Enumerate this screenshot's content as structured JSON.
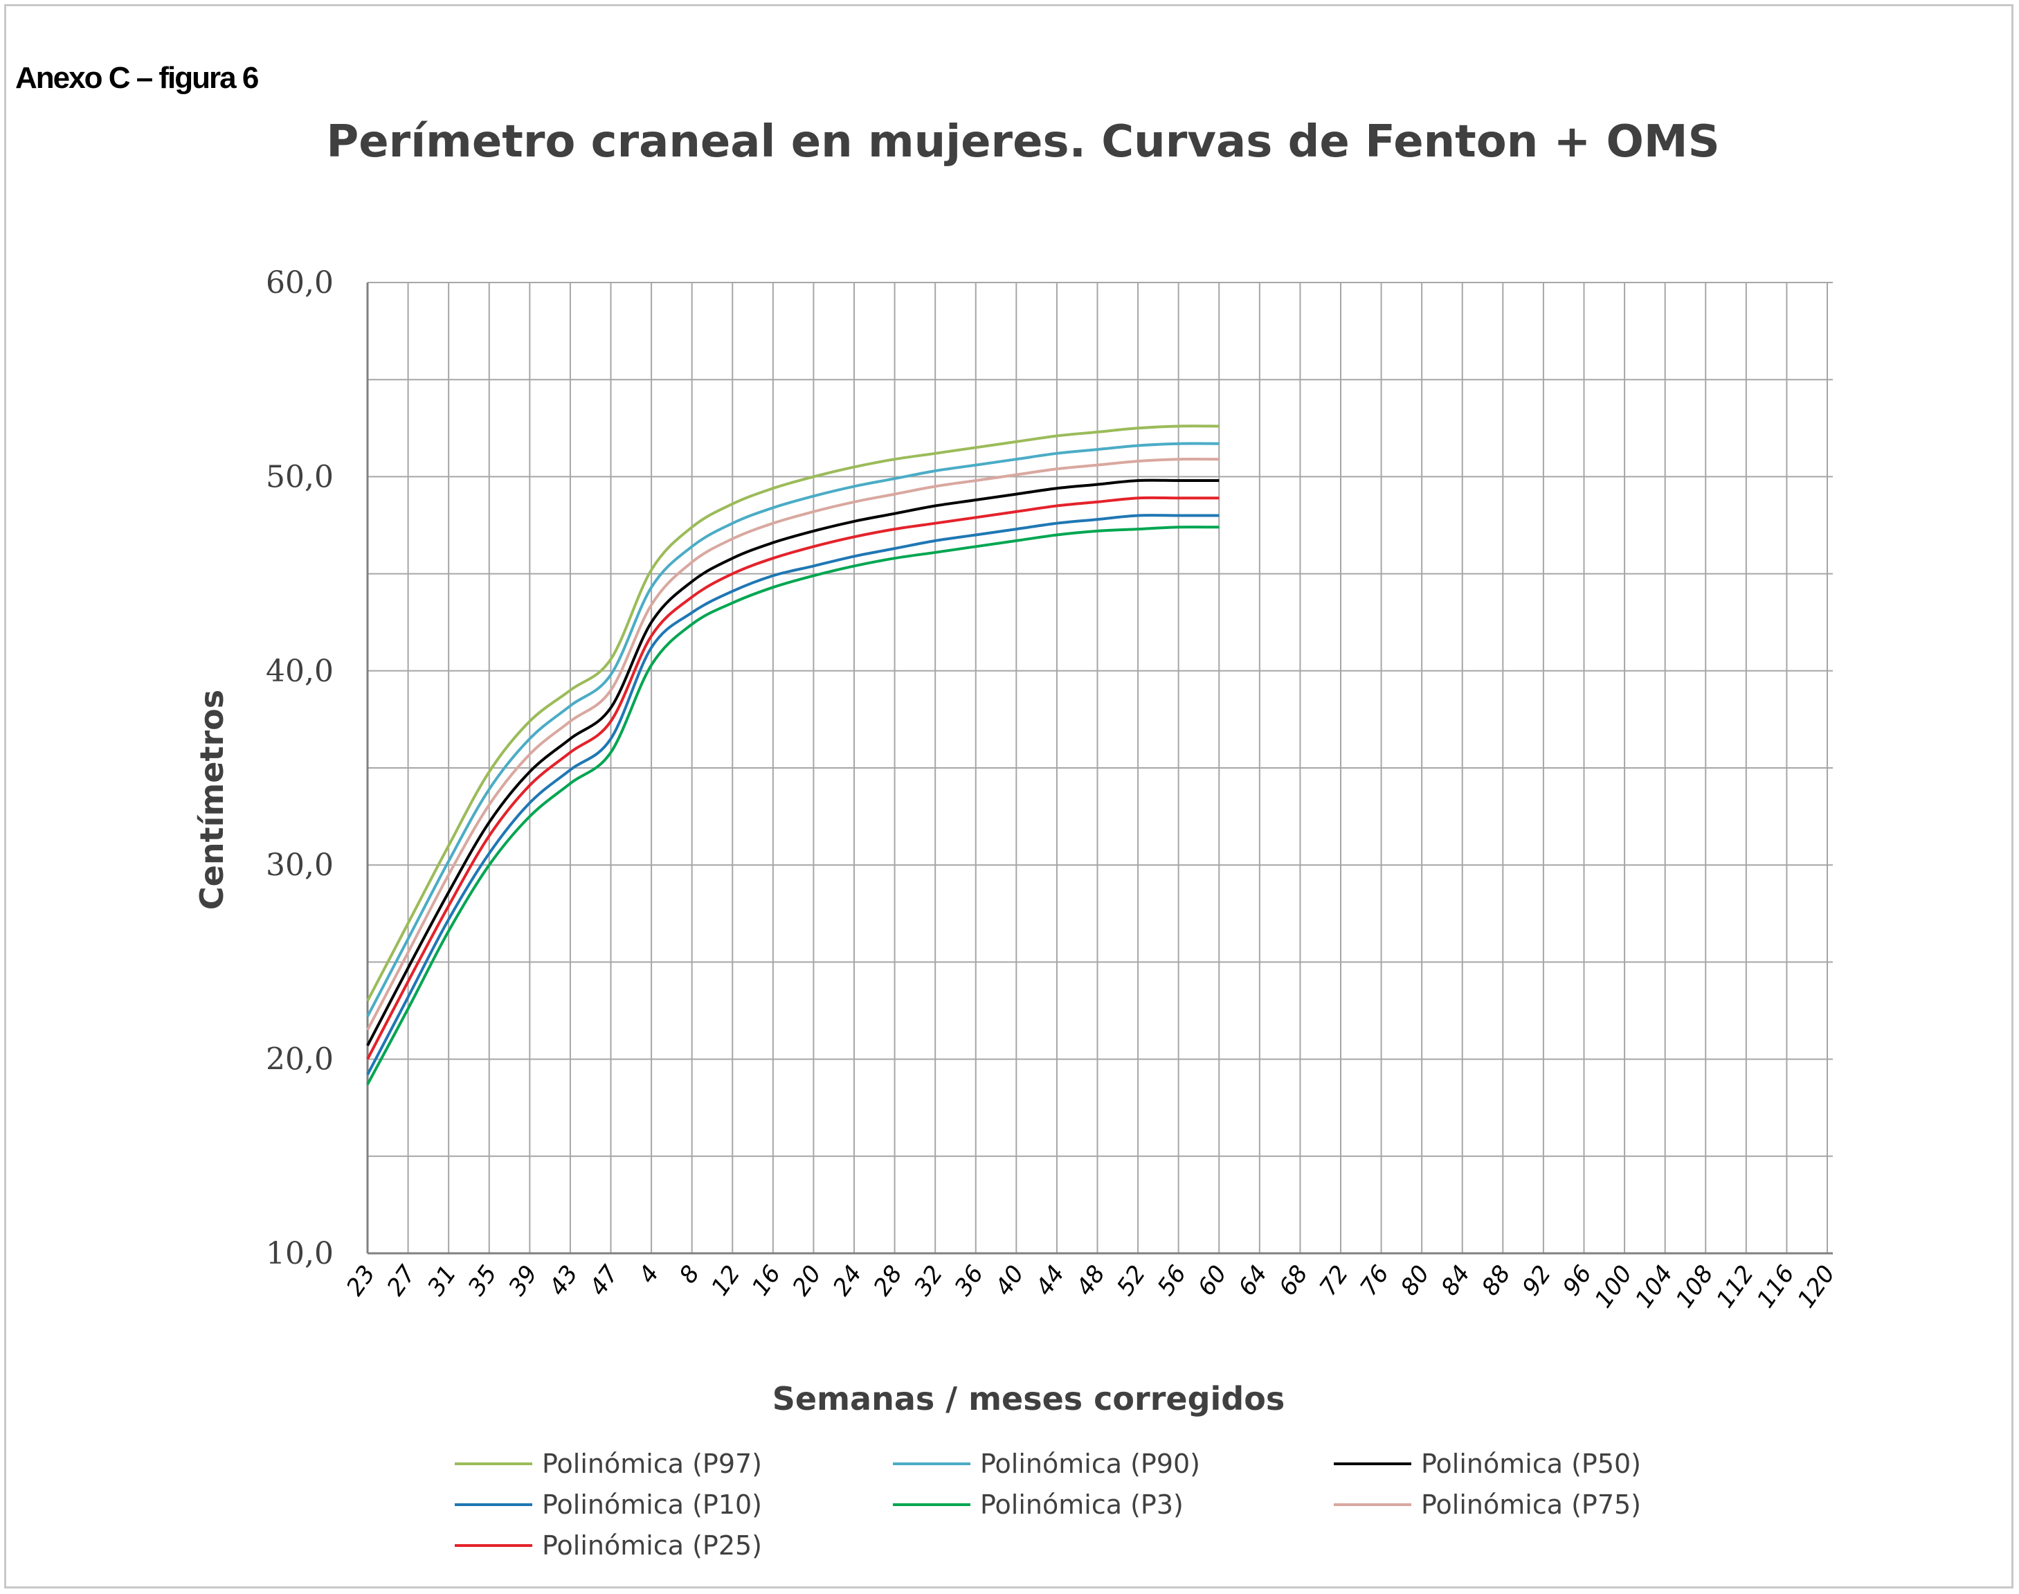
{
  "annex_label": "Anexo C – figura 6",
  "chart_data": {
    "type": "line",
    "title": "Perímetro craneal en mujeres. Curvas de Fenton + OMS",
    "xlabel": "Semanas / meses corregidos",
    "ylabel": "Centímetros",
    "ylim": [
      10,
      60
    ],
    "yticks": [
      "10,0",
      "20,0",
      "30,0",
      "40,0",
      "50,0",
      "60,0"
    ],
    "grid": true,
    "legend_position": "bottom",
    "x_tick_labels": [
      "23",
      "27",
      "31",
      "35",
      "39",
      "43",
      "47",
      "4",
      "8",
      "12",
      "16",
      "20",
      "24",
      "28",
      "32",
      "36",
      "40",
      "44",
      "48",
      "52",
      "56",
      "60",
      "64",
      "68",
      "72",
      "76",
      "80",
      "84",
      "88",
      "92",
      "96",
      "100",
      "104",
      "108",
      "112",
      "116",
      "120"
    ],
    "x": [
      23,
      27,
      31,
      35,
      39,
      43,
      47,
      4,
      8,
      12,
      16,
      20,
      24,
      28,
      32,
      36,
      40,
      44,
      48,
      52,
      56,
      60
    ],
    "series": [
      {
        "name": "Polinómica (P97)",
        "color": "#9bbb59",
        "values": [
          23.0,
          27.0,
          31.0,
          34.8,
          37.4,
          39.0,
          40.6,
          45.2,
          47.4,
          48.6,
          49.4,
          50.0,
          50.5,
          50.9,
          51.2,
          51.5,
          51.8,
          52.1,
          52.3,
          52.5,
          52.6,
          52.6
        ]
      },
      {
        "name": "Polinómica (P90)",
        "color": "#4bacc6",
        "values": [
          22.2,
          26.2,
          30.2,
          33.9,
          36.5,
          38.2,
          39.8,
          44.3,
          46.4,
          47.6,
          48.4,
          49.0,
          49.5,
          49.9,
          50.3,
          50.6,
          50.9,
          51.2,
          51.4,
          51.6,
          51.7,
          51.7
        ]
      },
      {
        "name": "Polinómica (P50)",
        "color": "#000000",
        "values": [
          20.7,
          24.7,
          28.6,
          32.2,
          34.8,
          36.5,
          38.1,
          42.5,
          44.6,
          45.8,
          46.6,
          47.2,
          47.7,
          48.1,
          48.5,
          48.8,
          49.1,
          49.4,
          49.6,
          49.8,
          49.8,
          49.8
        ]
      },
      {
        "name": "Polinómica (P10)",
        "color": "#1f77b4",
        "values": [
          19.2,
          23.2,
          27.2,
          30.6,
          33.2,
          34.9,
          36.5,
          41.2,
          43.0,
          44.1,
          44.9,
          45.4,
          45.9,
          46.3,
          46.7,
          47.0,
          47.3,
          47.6,
          47.8,
          48.0,
          48.0,
          48.0
        ]
      },
      {
        "name": "Polinómica (P3)",
        "color": "#00a651",
        "values": [
          18.7,
          22.6,
          26.6,
          30.0,
          32.5,
          34.2,
          35.8,
          40.3,
          42.4,
          43.5,
          44.3,
          44.9,
          45.4,
          45.8,
          46.1,
          46.4,
          46.7,
          47.0,
          47.2,
          47.3,
          47.4,
          47.4
        ]
      },
      {
        "name": "Polinómica (P75)",
        "color": "#d9a8a0",
        "values": [
          21.5,
          25.5,
          29.5,
          33.1,
          35.7,
          37.4,
          39.0,
          43.4,
          45.6,
          46.8,
          47.6,
          48.2,
          48.7,
          49.1,
          49.5,
          49.8,
          50.1,
          50.4,
          50.6,
          50.8,
          50.9,
          50.9
        ]
      },
      {
        "name": "Polinómica (P25)",
        "color": "#e4222a",
        "values": [
          20.0,
          24.0,
          27.9,
          31.5,
          34.1,
          35.8,
          37.4,
          41.8,
          43.8,
          45.0,
          45.8,
          46.4,
          46.9,
          47.3,
          47.6,
          47.9,
          48.2,
          48.5,
          48.7,
          48.9,
          48.9,
          48.9
        ]
      }
    ]
  }
}
